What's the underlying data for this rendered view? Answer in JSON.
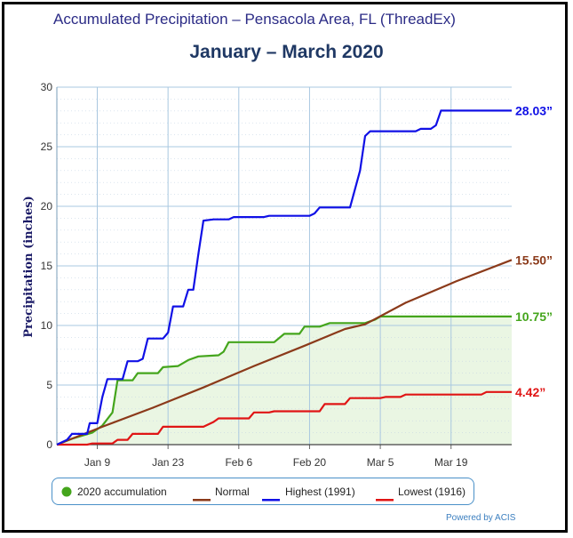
{
  "header": {
    "title": "Accumulated Precipitation – Pensacola Area, FL (ThreadEx)",
    "subtitle": "January – March  2020"
  },
  "powered_by": "Powered by ACIS",
  "colors": {
    "accumulation": "#44a51c",
    "normal": "#8b3a1a",
    "highest": "#1010e6",
    "lowest": "#e01515",
    "fill": "#e8f5e0",
    "grid": "#a9c8e0"
  },
  "chart_data": {
    "type": "line",
    "title": "January – March  2020",
    "xlabel": "",
    "ylabel": "Precipitation (inches)",
    "x_unit": "day of year 2020 (Jan 1 = 1)",
    "xlim": [
      1,
      91
    ],
    "ylim": [
      0,
      30
    ],
    "y_ticks": [
      0,
      5,
      10,
      15,
      20,
      25,
      30
    ],
    "x_ticks": [
      {
        "day": 9,
        "label": "Jan 9"
      },
      {
        "day": 23,
        "label": "Jan 23"
      },
      {
        "day": 37,
        "label": "Feb 6"
      },
      {
        "day": 51,
        "label": "Feb 20"
      },
      {
        "day": 65,
        "label": "Mar 5"
      },
      {
        "day": 79,
        "label": "Mar 19"
      }
    ],
    "grid": true,
    "legend_position": "bottom",
    "series": [
      {
        "name": "2020 accumulation",
        "color": "#44a51c",
        "end_label": "10.75”",
        "points": [
          [
            1,
            0
          ],
          [
            4,
            0.5
          ],
          [
            8,
            1.0
          ],
          [
            10,
            1.6
          ],
          [
            12,
            2.7
          ],
          [
            13,
            5.4
          ],
          [
            16,
            5.4
          ],
          [
            17,
            6.0
          ],
          [
            21,
            6.0
          ],
          [
            22,
            6.5
          ],
          [
            25,
            6.6
          ],
          [
            27,
            7.1
          ],
          [
            29,
            7.4
          ],
          [
            33,
            7.5
          ],
          [
            34,
            7.8
          ],
          [
            35,
            8.6
          ],
          [
            44,
            8.6
          ],
          [
            46,
            9.3
          ],
          [
            49,
            9.3
          ],
          [
            50,
            9.9
          ],
          [
            53,
            9.9
          ],
          [
            55,
            10.2
          ],
          [
            62,
            10.2
          ],
          [
            64,
            10.5
          ],
          [
            65,
            10.75
          ],
          [
            91,
            10.75
          ]
        ]
      },
      {
        "name": "Normal",
        "color": "#8b3a1a",
        "end_label": "15.50”",
        "points": [
          [
            1,
            0
          ],
          [
            10,
            1.5
          ],
          [
            20,
            3.1
          ],
          [
            30,
            4.8
          ],
          [
            40,
            6.6
          ],
          [
            50,
            8.3
          ],
          [
            58,
            9.7
          ],
          [
            62,
            10.1
          ],
          [
            70,
            11.9
          ],
          [
            80,
            13.7
          ],
          [
            91,
            15.5
          ]
        ]
      },
      {
        "name": "Highest (1991)",
        "color": "#1010e6",
        "end_label": "28.03”",
        "points": [
          [
            1,
            0
          ],
          [
            3,
            0.4
          ],
          [
            4,
            0.9
          ],
          [
            7,
            0.9
          ],
          [
            7.5,
            1.8
          ],
          [
            9,
            1.8
          ],
          [
            10,
            4.0
          ],
          [
            11,
            5.5
          ],
          [
            14,
            5.5
          ],
          [
            15,
            7.0
          ],
          [
            17,
            7.0
          ],
          [
            18,
            7.2
          ],
          [
            19,
            8.9
          ],
          [
            22,
            8.9
          ],
          [
            23,
            9.4
          ],
          [
            24,
            11.6
          ],
          [
            26,
            11.6
          ],
          [
            27,
            13.0
          ],
          [
            28,
            13.0
          ],
          [
            29,
            16.0
          ],
          [
            30,
            18.8
          ],
          [
            32,
            18.9
          ],
          [
            35,
            18.9
          ],
          [
            36,
            19.1
          ],
          [
            42,
            19.1
          ],
          [
            43,
            19.2
          ],
          [
            51,
            19.2
          ],
          [
            52,
            19.4
          ],
          [
            53,
            19.9
          ],
          [
            59,
            19.9
          ],
          [
            61,
            23.0
          ],
          [
            62,
            25.9
          ],
          [
            63,
            26.3
          ],
          [
            72,
            26.3
          ],
          [
            73,
            26.5
          ],
          [
            75,
            26.5
          ],
          [
            76,
            26.8
          ],
          [
            77,
            28.03
          ],
          [
            91,
            28.03
          ]
        ]
      },
      {
        "name": "Lowest (1916)",
        "color": "#e01515",
        "end_label": "4.42”",
        "points": [
          [
            1,
            0
          ],
          [
            7,
            0
          ],
          [
            8,
            0.1
          ],
          [
            12,
            0.1
          ],
          [
            13,
            0.4
          ],
          [
            15,
            0.4
          ],
          [
            16,
            0.9
          ],
          [
            21,
            0.9
          ],
          [
            22,
            1.5
          ],
          [
            30,
            1.5
          ],
          [
            32,
            1.9
          ],
          [
            33,
            2.2
          ],
          [
            39,
            2.2
          ],
          [
            40,
            2.7
          ],
          [
            43,
            2.7
          ],
          [
            44,
            2.8
          ],
          [
            53,
            2.8
          ],
          [
            54,
            3.4
          ],
          [
            58,
            3.4
          ],
          [
            59,
            3.9
          ],
          [
            65,
            3.9
          ],
          [
            66,
            4.0
          ],
          [
            69,
            4.0
          ],
          [
            70,
            4.2
          ],
          [
            85,
            4.2
          ],
          [
            86,
            4.42
          ],
          [
            91,
            4.42
          ]
        ]
      }
    ]
  }
}
